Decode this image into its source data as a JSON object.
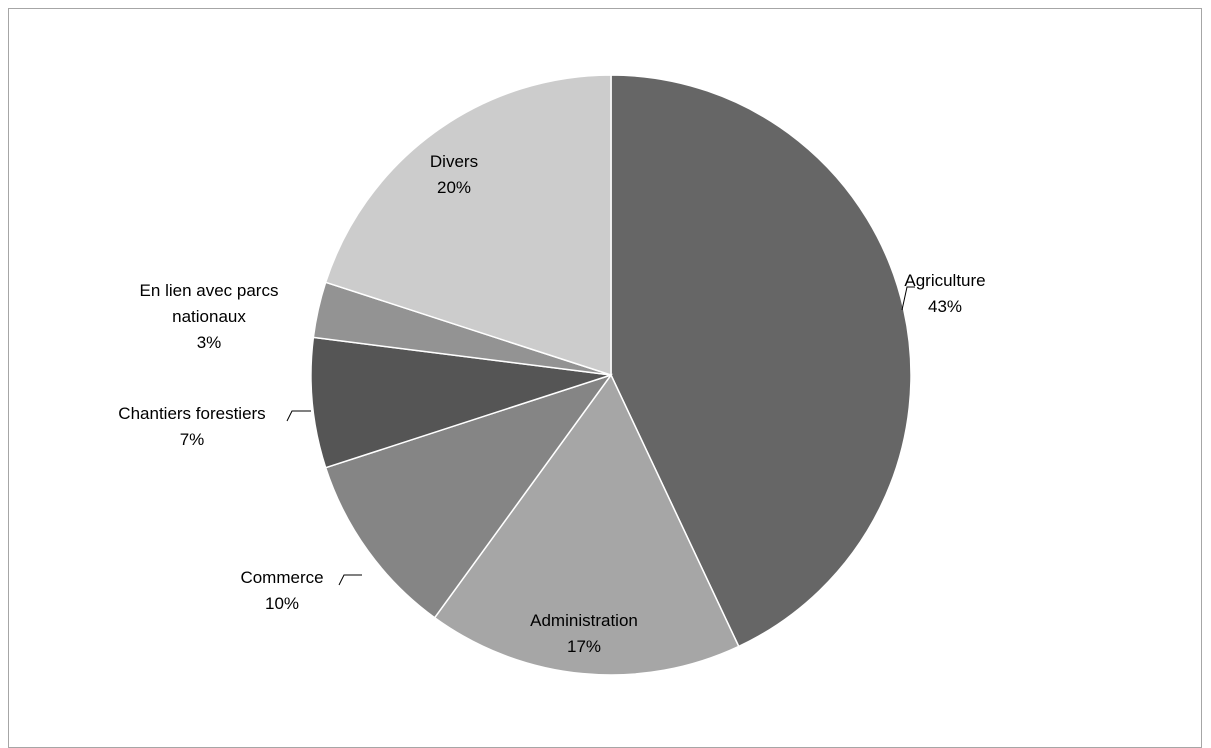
{
  "chart_data": {
    "type": "pie",
    "title": "",
    "slices": [
      {
        "label": "Agriculture",
        "pct_label": "43%",
        "value": 43,
        "color": "#666666"
      },
      {
        "label": "Administration",
        "pct_label": "17%",
        "value": 17,
        "color": "#a6a6a6"
      },
      {
        "label": "Commerce",
        "pct_label": "10%",
        "value": 10,
        "color": "#858585"
      },
      {
        "label": "Chantiers forestiers",
        "pct_label": "7%",
        "value": 7,
        "color": "#555555"
      },
      {
        "label": "En lien avec parcs nationaux",
        "pct_label": "3%",
        "value": 3,
        "color": "#939393"
      },
      {
        "label": "Divers",
        "pct_label": "20%",
        "value": 20,
        "color": "#cccccc"
      }
    ],
    "legend": "none",
    "data_labels": "category and percentage"
  }
}
